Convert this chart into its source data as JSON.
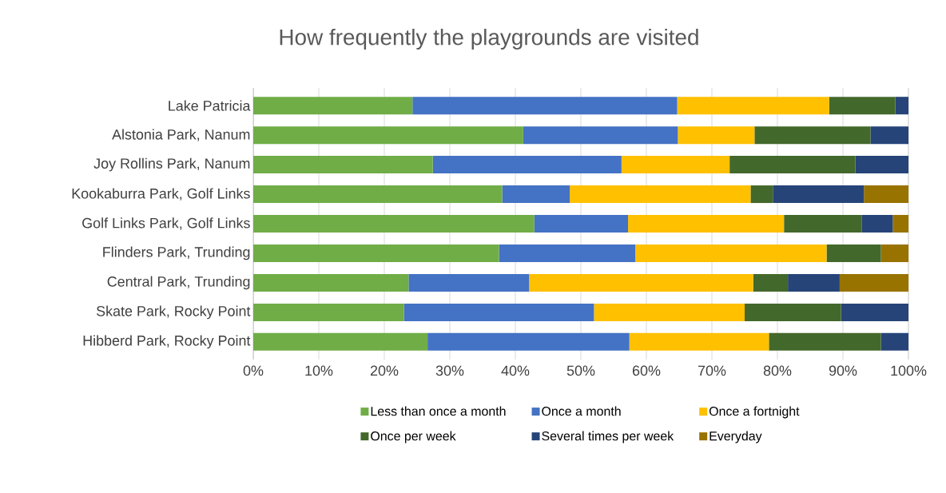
{
  "chart_data": {
    "type": "bar",
    "orientation": "horizontal",
    "stacked": true,
    "title": "How frequently the playgrounds are visited",
    "categories": [
      "Lake Patricia",
      "Alstonia Park, Nanum",
      "Joy Rollins Park, Nanum",
      "Kookaburra Park, Golf Links",
      "Golf Links Park, Golf Links",
      "Flinders Park, Trunding",
      "Central Park, Trunding",
      "Skate Park, Rocky Point",
      "Hibberd Park, Rocky Point"
    ],
    "series": [
      {
        "name": "Less than once a month",
        "color": "#70ad47",
        "values": [
          24.3,
          41.2,
          27.4,
          38.0,
          42.9,
          37.5,
          23.7,
          23.0,
          26.6
        ]
      },
      {
        "name": "Once a month",
        "color": "#4472c4",
        "values": [
          40.4,
          23.6,
          28.8,
          10.3,
          14.3,
          20.8,
          18.4,
          29.0,
          30.8
        ]
      },
      {
        "name": "Once a fortnight",
        "color": "#ffc000",
        "values": [
          23.2,
          11.7,
          16.5,
          27.6,
          23.8,
          29.2,
          34.2,
          23.0,
          21.3
        ]
      },
      {
        "name": "Once per week",
        "color": "#43682b",
        "values": [
          10.1,
          17.7,
          19.2,
          3.4,
          11.9,
          8.3,
          5.3,
          14.7,
          17.1
        ]
      },
      {
        "name": "Several times per week",
        "color": "#264478",
        "values": [
          2.0,
          5.8,
          8.1,
          13.9,
          4.7,
          0,
          7.9,
          10.3,
          4.2
        ]
      },
      {
        "name": "Everyday",
        "color": "#997300",
        "values": [
          0,
          0,
          0,
          6.8,
          2.4,
          4.2,
          10.5,
          0,
          0
        ]
      }
    ],
    "xlim": [
      0,
      100
    ],
    "xticks": [
      {
        "value": 0,
        "label": "0%"
      },
      {
        "value": 10,
        "label": "10%"
      },
      {
        "value": 20,
        "label": "20%"
      },
      {
        "value": 30,
        "label": "30%"
      },
      {
        "value": 40,
        "label": "40%"
      },
      {
        "value": 50,
        "label": "50%"
      },
      {
        "value": 60,
        "label": "60%"
      },
      {
        "value": 70,
        "label": "70%"
      },
      {
        "value": 80,
        "label": "80%"
      },
      {
        "value": 90,
        "label": "90%"
      },
      {
        "value": 100,
        "label": "100%"
      }
    ],
    "grid": "x",
    "legend": "bottom"
  }
}
